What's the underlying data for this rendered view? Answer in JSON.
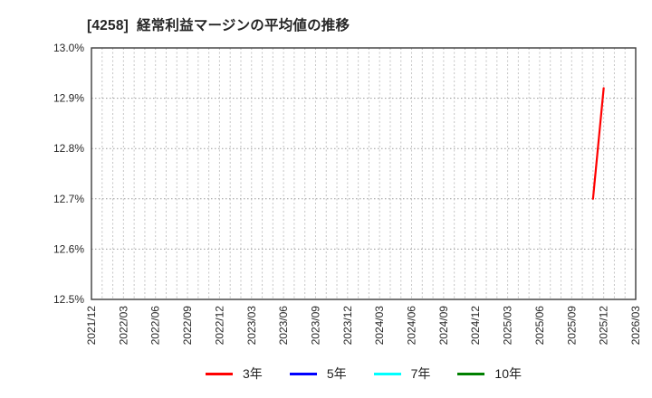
{
  "chart_data": {
    "type": "line",
    "code": "4258",
    "title": "[4258]  経常利益マージンの平均値の推移",
    "ylabel": "",
    "xlabel": "",
    "ylim": [
      12.5,
      13.0
    ],
    "y_tick_step": 0.1,
    "y_ticks": [
      "13.0%",
      "12.9%",
      "12.8%",
      "12.7%",
      "12.6%",
      "12.5%"
    ],
    "xlim": [
      "2021/12",
      "2026/03"
    ],
    "x_ticks": [
      "2021/12",
      "2022/03",
      "2022/06",
      "2022/09",
      "2022/12",
      "2023/03",
      "2023/06",
      "2023/09",
      "2023/12",
      "2024/03",
      "2024/06",
      "2024/09",
      "2024/12",
      "2025/03",
      "2025/06",
      "2025/09",
      "2025/12",
      "2026/03"
    ],
    "grid": {
      "vertical": "monthly, dashed light gray",
      "horizontal": "every 0.1%, dotted gray"
    },
    "legend_position": "bottom",
    "series": [
      {
        "key": "3y",
        "label": "3年",
        "color": "#ff0000",
        "points": [
          {
            "x": "2025/11",
            "y": 12.7
          },
          {
            "x": "2025/12",
            "y": 12.92
          }
        ]
      },
      {
        "key": "5y",
        "label": "5年",
        "color": "#0000ff",
        "points": []
      },
      {
        "key": "7y",
        "label": "7年",
        "color": "#00ffff",
        "points": []
      },
      {
        "key": "10y",
        "label": "10年",
        "color": "#008000",
        "points": []
      }
    ]
  }
}
